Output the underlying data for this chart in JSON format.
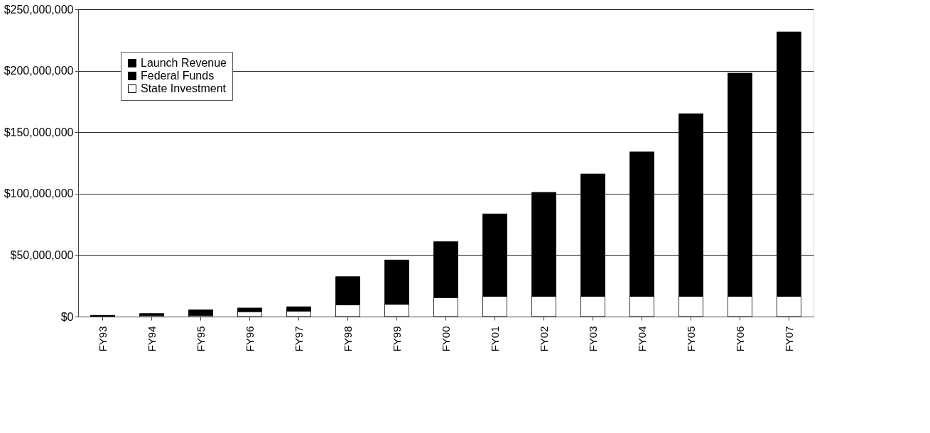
{
  "chart_data": {
    "type": "bar",
    "stacked": true,
    "categories": [
      "FY93",
      "FY94",
      "FY95",
      "FY96",
      "FY97",
      "FY98",
      "FY99",
      "FY00",
      "FY01",
      "FY02",
      "FY03",
      "FY04",
      "FY05",
      "FY06",
      "FY07"
    ],
    "series": [
      {
        "name": "State Investment",
        "color": "#ffffff",
        "values": [
          500000,
          1000000,
          1000000,
          4000000,
          4500000,
          9500000,
          10000000,
          15500000,
          16500000,
          16500000,
          16500000,
          16500000,
          16500000,
          16500000,
          16500000
        ]
      },
      {
        "name": "Federal Funds",
        "color": "#000000",
        "values": [
          null,
          null,
          null,
          null,
          null,
          null,
          null,
          null,
          null,
          null,
          null,
          null,
          null,
          null,
          null
        ]
      },
      {
        "name": "Launch Revenue",
        "color": "#000000",
        "values": [
          500000,
          1500000,
          4500000,
          3000000,
          3500000,
          23000000,
          36000000,
          45500000,
          67000000,
          84500000,
          99500000,
          117500000,
          148500000,
          181500000,
          215000000
        ]
      }
    ],
    "ylim": [
      0,
      250000000
    ],
    "yticks": [
      {
        "value": 0,
        "label": "$0"
      },
      {
        "value": 50000000,
        "label": "$50,000,000"
      },
      {
        "value": 100000000,
        "label": "$100,000,000"
      },
      {
        "value": 150000000,
        "label": "$150,000,000"
      },
      {
        "value": 200000000,
        "label": "$200,000,000"
      },
      {
        "value": 250000000,
        "label": "$250,000,000"
      }
    ],
    "grid": "y",
    "legend": "top left"
  }
}
